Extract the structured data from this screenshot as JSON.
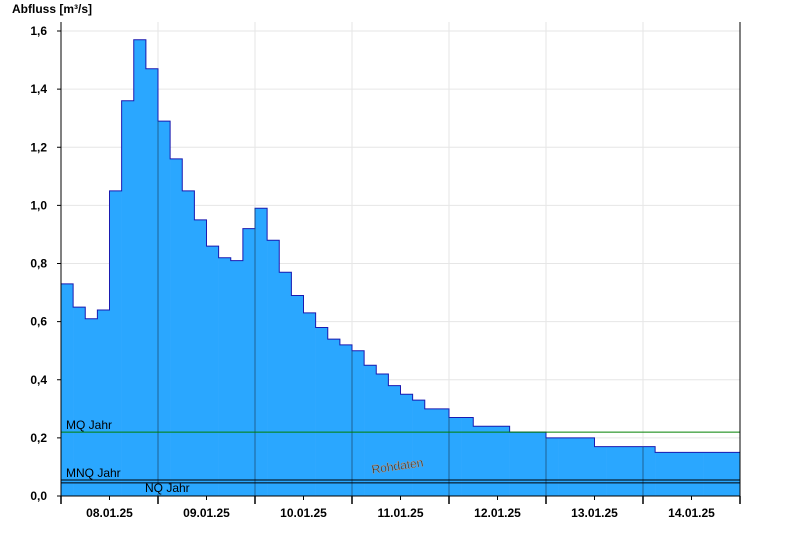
{
  "chart_data": {
    "type": "step-area",
    "y_label": "Abfluss [m³/s]",
    "color": "#2aa7ff",
    "line_color": "#1a1ab0",
    "xlim": [
      0,
      7
    ],
    "xticks": [
      {
        "value": 0.5,
        "label": "08.01.25"
      },
      {
        "value": 1.5,
        "label": "09.01.25"
      },
      {
        "value": 2.5,
        "label": "10.01.25"
      },
      {
        "value": 3.5,
        "label": "11.01.25"
      },
      {
        "value": 4.5,
        "label": "12.01.25"
      },
      {
        "value": 5.5,
        "label": "13.01.25"
      },
      {
        "value": 6.5,
        "label": "14.01.25"
      }
    ],
    "ylim": [
      0,
      1.6
    ],
    "yticks": [
      {
        "value": 0,
        "label": "0,0"
      },
      {
        "value": 0.2,
        "label": "0,2"
      },
      {
        "value": 0.4,
        "label": "0,4"
      },
      {
        "value": 0.6,
        "label": "0,6"
      },
      {
        "value": 0.8,
        "label": "0,8"
      },
      {
        "value": 1.0,
        "label": "1,0"
      },
      {
        "value": 1.2,
        "label": "1,2"
      },
      {
        "value": 1.4,
        "label": "1,4"
      },
      {
        "value": 1.6,
        "label": "1,6"
      }
    ],
    "grid": true,
    "x": [
      0,
      0.125,
      0.25,
      0.375,
      0.5,
      0.625,
      0.75,
      0.875,
      1,
      1.125,
      1.25,
      1.375,
      1.5,
      1.625,
      1.75,
      1.875,
      2,
      2.125,
      2.25,
      2.375,
      2.5,
      2.625,
      2.75,
      2.875,
      3,
      3.125,
      3.25,
      3.375,
      3.5,
      3.625,
      3.75,
      3.875,
      4,
      4.125,
      4.25,
      4.375,
      4.5,
      4.625,
      4.75,
      4.875,
      5,
      5.125,
      5.25,
      5.375,
      5.5,
      5.625,
      5.75,
      5.875,
      6,
      6.125,
      6.25,
      6.375,
      6.5,
      6.625,
      6.75,
      6.875
    ],
    "values": [
      0.73,
      0.65,
      0.61,
      0.64,
      1.05,
      1.36,
      1.57,
      1.47,
      1.29,
      1.16,
      1.05,
      0.95,
      0.86,
      0.82,
      0.81,
      0.92,
      0.99,
      0.88,
      0.77,
      0.69,
      0.63,
      0.58,
      0.54,
      0.52,
      0.5,
      0.45,
      0.42,
      0.38,
      0.35,
      0.33,
      0.3,
      0.3,
      0.27,
      0.27,
      0.24,
      0.24,
      0.24,
      0.22,
      0.22,
      0.22,
      0.2,
      0.2,
      0.2,
      0.2,
      0.17,
      0.17,
      0.17,
      0.17,
      0.17,
      0.15,
      0.15,
      0.15,
      0.15,
      0.15,
      0.15,
      0.15
    ],
    "reference_lines": [
      {
        "name": "MQ Jahr",
        "value": 0.22,
        "color": "#008000"
      },
      {
        "name": "MNQ Jahr",
        "value": 0.055,
        "color": "#000000"
      },
      {
        "name": "NQ Jahr",
        "value": 0.045,
        "color": "#000000"
      }
    ],
    "watermark": "Rohdaten"
  }
}
